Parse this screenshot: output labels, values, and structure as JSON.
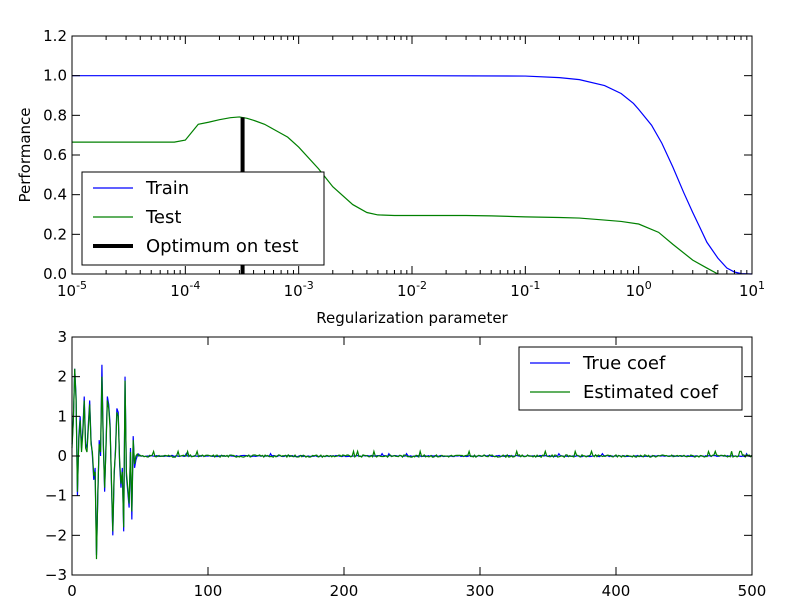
{
  "chart_data": [
    {
      "type": "line",
      "xscale": "log",
      "xlim": [
        1e-05,
        10
      ],
      "ylim": [
        0,
        1.2
      ],
      "xlabel": "Regularization parameter",
      "ylabel": "Performance",
      "x_ticks": [
        {
          "base": "10",
          "exp": "-5"
        },
        {
          "base": "10",
          "exp": "-4"
        },
        {
          "base": "10",
          "exp": "-3"
        },
        {
          "base": "10",
          "exp": "-2"
        },
        {
          "base": "10",
          "exp": "-1"
        },
        {
          "base": "10",
          "exp": "0"
        },
        {
          "base": "10",
          "exp": "1"
        }
      ],
      "y_ticks": [
        "0.0",
        "0.2",
        "0.4",
        "0.6",
        "0.8",
        "1.0",
        "1.2"
      ],
      "legend_position": "lower-left",
      "series": [
        {
          "name": "Train",
          "color": "#0000ff",
          "x": [
            1e-05,
            0.0001,
            0.001,
            0.01,
            0.1,
            0.2,
            0.3,
            0.5,
            0.7,
            0.9,
            1.0,
            1.3,
            1.6,
            2.0,
            2.5,
            3.0,
            3.5,
            4.0,
            5.0,
            6.0,
            7.0,
            8.0,
            10.0
          ],
          "y": [
            1.0,
            1.0,
            1.0,
            1.0,
            0.998,
            0.99,
            0.98,
            0.95,
            0.91,
            0.86,
            0.83,
            0.75,
            0.66,
            0.54,
            0.41,
            0.31,
            0.23,
            0.16,
            0.08,
            0.03,
            0.01,
            0.002,
            0.0
          ]
        },
        {
          "name": "Test",
          "color": "#008000",
          "x": [
            1e-05,
            3e-05,
            8e-05,
            0.0001,
            0.00013,
            0.00016,
            0.0002,
            0.00025,
            0.0003,
            0.00035,
            0.0004,
            0.0005,
            0.0006,
            0.0008,
            0.001,
            0.0015,
            0.002,
            0.003,
            0.004,
            0.005,
            0.007,
            0.01,
            0.03,
            0.05,
            0.1,
            0.2,
            0.3,
            0.5,
            0.7,
            1.0,
            1.5,
            2.0,
            3.0,
            4.0,
            5.0
          ],
          "y": [
            0.665,
            0.665,
            0.665,
            0.675,
            0.755,
            0.765,
            0.778,
            0.788,
            0.792,
            0.785,
            0.775,
            0.755,
            0.73,
            0.69,
            0.64,
            0.53,
            0.44,
            0.35,
            0.31,
            0.298,
            0.295,
            0.295,
            0.295,
            0.293,
            0.288,
            0.285,
            0.282,
            0.272,
            0.265,
            0.252,
            0.21,
            0.15,
            0.07,
            0.03,
            0.0
          ]
        },
        {
          "name": "Optimum on test",
          "color": "#000000",
          "type": "vline",
          "x": 0.00032,
          "ymin": 0,
          "ymax": 0.79
        }
      ]
    },
    {
      "type": "line",
      "xlim": [
        0,
        500
      ],
      "ylim": [
        -3,
        3
      ],
      "x_ticks": [
        "0",
        "100",
        "200",
        "300",
        "400",
        "500"
      ],
      "y_ticks": [
        "−3",
        "−2",
        "−1",
        "0",
        "1",
        "2",
        "3"
      ],
      "legend_position": "upper-right",
      "series": [
        {
          "name": "True coef",
          "color": "#0000ff",
          "x": [
            0,
            1,
            2,
            3,
            4,
            5,
            6,
            7,
            8,
            9,
            10,
            11,
            12,
            13,
            14,
            15,
            16,
            17,
            18,
            19,
            20,
            21,
            22,
            23,
            24,
            25,
            26,
            27,
            28,
            29,
            30,
            31,
            32,
            33,
            34,
            35,
            36,
            37,
            38,
            39,
            40,
            41,
            42,
            43,
            44,
            45,
            46,
            47,
            48,
            49,
            50
          ],
          "y": [
            0.3,
            0.9,
            2.2,
            1.5,
            -1.0,
            0.5,
            1.0,
            0.2,
            0.7,
            1.5,
            0.3,
            0.2,
            0.8,
            1.4,
            0.4,
            0.0,
            -0.6,
            -0.3,
            -2.5,
            -1.0,
            0.4,
            0.0,
            2.3,
            0.4,
            -0.9,
            0.3,
            1.5,
            1.3,
            0.8,
            -0.7,
            -2.0,
            -0.5,
            0.2,
            1.2,
            1.1,
            -0.2,
            -0.8,
            -0.3,
            -1.9,
            2.0,
            -0.5,
            -0.9,
            -1.3,
            0.2,
            -1.6,
            0.5,
            -0.3,
            -0.1,
            0.0,
            0.05,
            0.0
          ]
        },
        {
          "name": "Estimated coef",
          "color": "#008000",
          "x": [
            0,
            1,
            2,
            3,
            4,
            5,
            6,
            7,
            8,
            9,
            10,
            11,
            12,
            13,
            14,
            15,
            16,
            17,
            18,
            19,
            20,
            21,
            22,
            23,
            24,
            25,
            26,
            27,
            28,
            29,
            30,
            31,
            32,
            33,
            34,
            35,
            36,
            37,
            38,
            39,
            40,
            41,
            42,
            43,
            44,
            45,
            46,
            47,
            48,
            49,
            50
          ],
          "y": [
            0.2,
            0.9,
            2.2,
            1.4,
            -0.9,
            0.4,
            0.9,
            0.1,
            0.6,
            1.4,
            0.2,
            0.1,
            0.7,
            1.3,
            0.3,
            0.1,
            -0.5,
            -0.4,
            -2.6,
            -0.9,
            0.3,
            0.1,
            2.0,
            0.3,
            -0.8,
            0.2,
            1.4,
            1.2,
            0.7,
            -0.6,
            -1.9,
            -0.4,
            0.1,
            1.1,
            1.0,
            -0.1,
            -0.7,
            -0.4,
            -1.8,
            1.9,
            -0.4,
            -0.8,
            -1.2,
            0.1,
            -1.4,
            0.4,
            -0.2,
            0.0,
            0.05,
            0.0,
            0.02
          ]
        }
      ]
    }
  ]
}
